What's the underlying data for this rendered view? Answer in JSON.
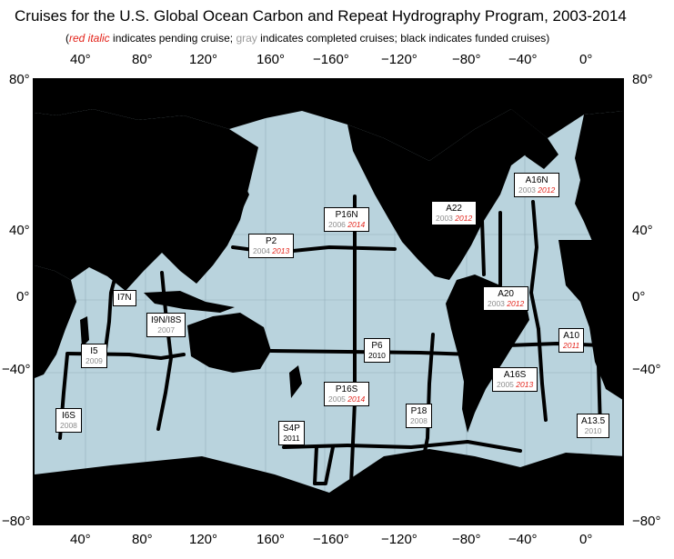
{
  "title": "Cruises for the U.S. Global Ocean Carbon and Repeat Hydrography Program, 2003-2014",
  "legend": {
    "open_paren": "(",
    "red_text": "red italic",
    "after_red": " indicates pending cruise; ",
    "gray_text": "gray",
    "after_gray": " indicates completed cruises; black indicates funded cruises)"
  },
  "colors": {
    "ocean": "#b9d3dd",
    "land": "#000000",
    "pending": "#e3241b",
    "completed": "#8c8c8c",
    "funded": "#000000"
  },
  "lon_ticks": [
    "40°",
    "80°",
    "120°",
    "160°",
    "−160°",
    "−120°",
    "−80°",
    "−40°",
    "0°"
  ],
  "lat_ticks": [
    "80°",
    "40°",
    "0°",
    "−40°",
    "−80°"
  ],
  "cruises": [
    {
      "name": "I7N",
      "years": []
    },
    {
      "name": "I9N/I8S",
      "years": [
        {
          "y": "2007",
          "s": "completed"
        }
      ]
    },
    {
      "name": "I5",
      "years": [
        {
          "y": "2009",
          "s": "completed"
        }
      ]
    },
    {
      "name": "I6S",
      "years": [
        {
          "y": "2008",
          "s": "completed"
        }
      ]
    },
    {
      "name": "P2",
      "years": [
        {
          "y": "2004",
          "s": "completed"
        },
        {
          "y": "2013",
          "s": "pending"
        }
      ]
    },
    {
      "name": "P16N",
      "years": [
        {
          "y": "2006",
          "s": "completed"
        },
        {
          "y": "2014",
          "s": "pending"
        }
      ]
    },
    {
      "name": "P6",
      "years": [
        {
          "y": "2010",
          "s": "funded"
        }
      ]
    },
    {
      "name": "P16S",
      "years": [
        {
          "y": "2005",
          "s": "completed"
        },
        {
          "y": "2014",
          "s": "pending"
        }
      ]
    },
    {
      "name": "S4P",
      "years": [
        {
          "y": "2011",
          "s": "funded"
        }
      ]
    },
    {
      "name": "P18",
      "years": [
        {
          "y": "2008",
          "s": "completed"
        }
      ]
    },
    {
      "name": "A22",
      "years": [
        {
          "y": "2003",
          "s": "completed"
        },
        {
          "y": "2012",
          "s": "pending"
        }
      ]
    },
    {
      "name": "A16N",
      "years": [
        {
          "y": "2003",
          "s": "completed"
        },
        {
          "y": "2012",
          "s": "pending"
        }
      ]
    },
    {
      "name": "A20",
      "years": [
        {
          "y": "2003",
          "s": "completed"
        },
        {
          "y": "2012",
          "s": "pending"
        }
      ]
    },
    {
      "name": "A10",
      "years": [
        {
          "y": "2011",
          "s": "pending"
        }
      ]
    },
    {
      "name": "A16S",
      "years": [
        {
          "y": "2005",
          "s": "completed"
        },
        {
          "y": "2013",
          "s": "pending"
        }
      ]
    },
    {
      "name": "A13.5",
      "years": [
        {
          "y": "2010",
          "s": "completed"
        }
      ]
    }
  ]
}
